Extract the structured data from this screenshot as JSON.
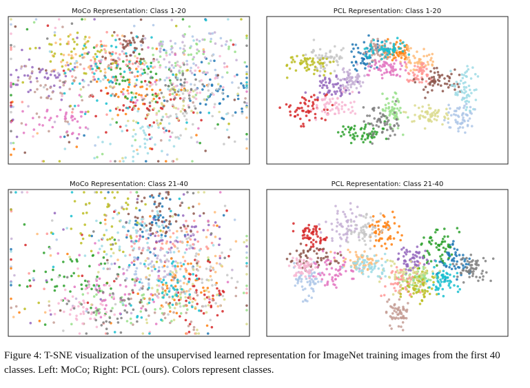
{
  "figure": {
    "panels": [
      {
        "title": "MoCo Representation: Class 1-20"
      },
      {
        "title": "PCL Representation: Class 1-20"
      },
      {
        "title": "MoCo Representation: Class 21-40"
      },
      {
        "title": "PCL Representation: Class 21-40"
      }
    ],
    "caption": "Figure 4: T-SNE visualization of the unsupervised learned representation for ImageNet training images from the first 40 classes. Left: MoCo; Right: PCL (ours). Colors represent classes."
  }
}
